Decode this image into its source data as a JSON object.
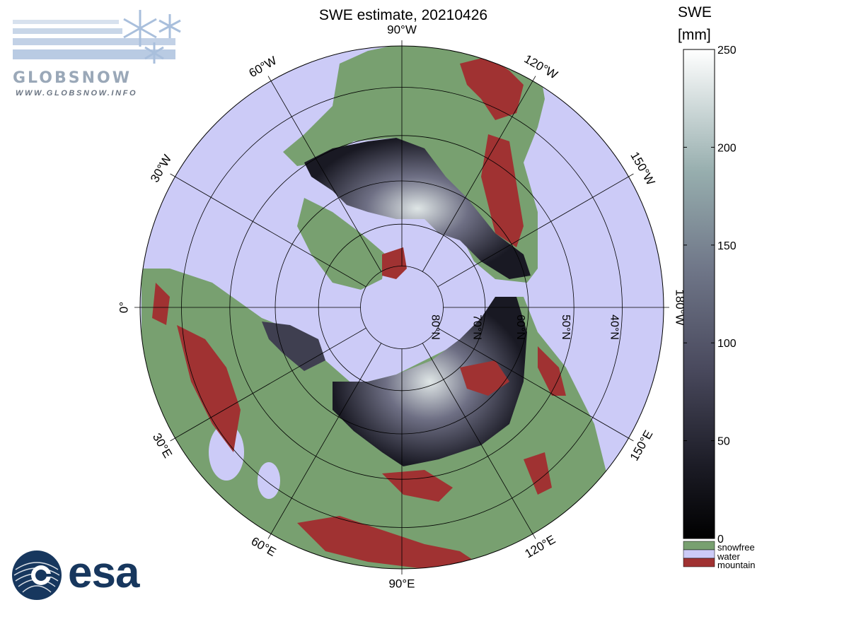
{
  "title": "SWE estimate, 20210426",
  "colorbar": {
    "label_line1": "SWE",
    "label_line2": "[mm]",
    "ticks": [
      "250",
      "200",
      "150",
      "100",
      "50",
      "0"
    ],
    "tick_values": [
      250,
      200,
      150,
      100,
      50,
      0
    ],
    "range": [
      0,
      250
    ],
    "categories": [
      {
        "label": "snowfree",
        "color": "#78a070"
      },
      {
        "label": "water",
        "color": "#cccbf7"
      },
      {
        "label": "mountain",
        "color": "#a03232"
      }
    ]
  },
  "longitude_labels": [
    {
      "text": "90°W",
      "angle": 0
    },
    {
      "text": "120°W",
      "angle": 30
    },
    {
      "text": "150°W",
      "angle": 60
    },
    {
      "text": "180°W",
      "angle": 90
    },
    {
      "text": "150°E",
      "angle": 120
    },
    {
      "text": "120°E",
      "angle": 150
    },
    {
      "text": "90°E",
      "angle": 180
    },
    {
      "text": "60°E",
      "angle": 210
    },
    {
      "text": "30°E",
      "angle": 240
    },
    {
      "text": "0°",
      "angle": 270
    },
    {
      "text": "30°W",
      "angle": 300
    },
    {
      "text": "60°W",
      "angle": 330
    }
  ],
  "latitude_labels": [
    "80°N",
    "70°N",
    "60°N",
    "50°N",
    "40°N"
  ],
  "latitude_values": [
    80,
    70,
    60,
    50,
    40
  ],
  "logos": {
    "globsnow": "GLOBSNOW",
    "globsnow_url": "WWW.GLOBSNOW.INFO",
    "esa": "esa"
  },
  "colors": {
    "water": "#cccbf7",
    "snowfree": "#78a070",
    "mountain": "#a03232",
    "swe_low": "#0a0a10",
    "swe_mid": "#5a5a70",
    "swe_high": "#ffffff"
  }
}
